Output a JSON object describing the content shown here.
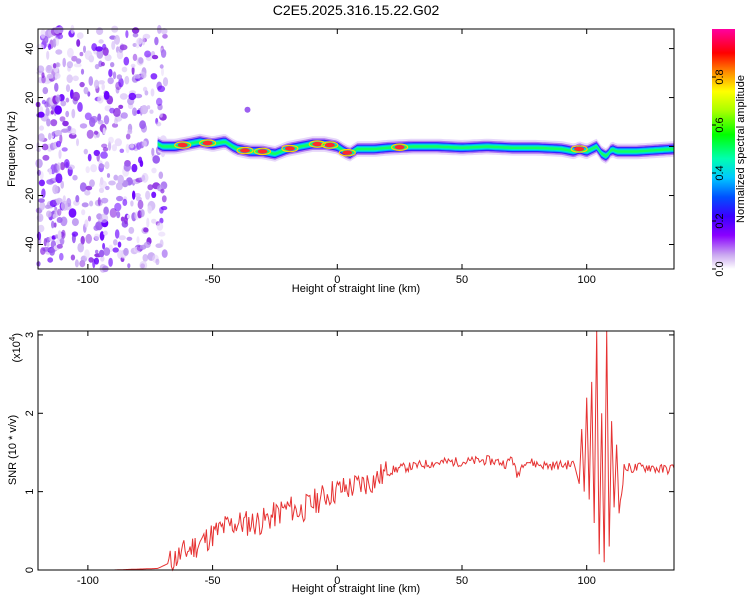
{
  "title": "C2E5.2025.316.15.22.G02",
  "chart_data": [
    {
      "type": "heatmap",
      "xlabel": "Height of straight line (km)",
      "ylabel": "Frequency (Hz)",
      "xlim": [
        -120,
        135
      ],
      "ylim": [
        -50,
        48
      ],
      "xticks": [
        -100,
        -50,
        0,
        50,
        100
      ],
      "xtick_labels": [
        "-100",
        "-50",
        "0",
        "50",
        "100"
      ],
      "yticks": [
        -40,
        -20,
        0,
        20,
        40
      ],
      "ytick_labels": [
        "-40",
        "-20",
        "0",
        "20",
        "40"
      ],
      "colorbar": {
        "label": "Normalized spectral amplitude",
        "range": [
          0,
          1
        ],
        "ticks": [
          "0.0",
          "0.2",
          "0.4",
          "0.6",
          "0.8"
        ],
        "tick_values": [
          0,
          0.2,
          0.4,
          0.6,
          0.8
        ]
      },
      "noise_region_x": [
        -120,
        -72
      ],
      "ridge": {
        "x": [
          -72,
          -70,
          -65,
          -60,
          -55,
          -50,
          -45,
          -42,
          -40,
          -35,
          -30,
          -25,
          -20,
          -15,
          -10,
          -5,
          0,
          3,
          5,
          8,
          10,
          15,
          20,
          30,
          40,
          50,
          60,
          70,
          80,
          90,
          95,
          97,
          100,
          102,
          104,
          106,
          108,
          110,
          112,
          120,
          135
        ],
        "freq": [
          1,
          0,
          0,
          1,
          2,
          1,
          2,
          0,
          -1,
          -2,
          -2,
          -3,
          -1,
          0,
          1,
          1,
          0,
          -2,
          -3,
          -1,
          -1,
          -1,
          -0.5,
          0,
          0,
          -0.5,
          0,
          -0.5,
          -0.5,
          -1,
          -2,
          -1,
          -2,
          -1,
          0,
          -3,
          -4,
          -1,
          -2,
          -2,
          -1
        ]
      },
      "ridge_hotspots_x": [
        -62,
        -52,
        -37,
        -30,
        -19,
        -8,
        -3,
        4,
        25,
        97
      ]
    },
    {
      "type": "line",
      "xlabel": "Height of straight line (km)",
      "ylabel": "SNR (10 * v/v)",
      "y_multiplier_label": "(x10",
      "y_multiplier_exp": "4",
      "xlim": [
        -120,
        135
      ],
      "ylim": [
        0,
        3.05
      ],
      "xticks": [
        -100,
        -50,
        0,
        50,
        100
      ],
      "xtick_labels": [
        "-100",
        "-50",
        "0",
        "50",
        "100"
      ],
      "yticks": [
        0,
        1,
        2,
        3
      ],
      "ytick_labels": [
        "0",
        "1",
        "2",
        "3"
      ],
      "series": [
        {
          "name": "SNR",
          "color": "#e63232",
          "x": [
            -120,
            -90,
            -72,
            -68,
            -65,
            -60,
            -55,
            -50,
            -45,
            -40,
            -35,
            -30,
            -25,
            -20,
            -15,
            -10,
            -5,
            0,
            5,
            10,
            15,
            20,
            25,
            30,
            35,
            40,
            45,
            50,
            55,
            60,
            65,
            68,
            70,
            72,
            75,
            80,
            85,
            90,
            95,
            97,
            98,
            99,
            100,
            101,
            102,
            103,
            104,
            105,
            106,
            107,
            108,
            109,
            110,
            111,
            112,
            113,
            115,
            120,
            125,
            130,
            135
          ],
          "y": [
            0,
            0,
            0.02,
            0.08,
            0.15,
            0.25,
            0.35,
            0.45,
            0.55,
            0.6,
            0.6,
            0.62,
            0.7,
            0.8,
            0.75,
            0.85,
            0.95,
            1.02,
            1.05,
            1.1,
            1.15,
            1.25,
            1.3,
            1.32,
            1.35,
            1.37,
            1.38,
            1.38,
            1.39,
            1.4,
            1.38,
            1.35,
            1.45,
            1.2,
            1.4,
            1.35,
            1.33,
            1.34,
            1.35,
            1.1,
            1.8,
            1.0,
            2.2,
            0.9,
            2.4,
            0.6,
            3.05,
            0.2,
            2.0,
            0.1,
            3.05,
            0.3,
            1.9,
            0.8,
            1.6,
            0.75,
            1.3,
            1.3,
            1.32,
            1.28,
            1.3
          ]
        }
      ]
    }
  ]
}
